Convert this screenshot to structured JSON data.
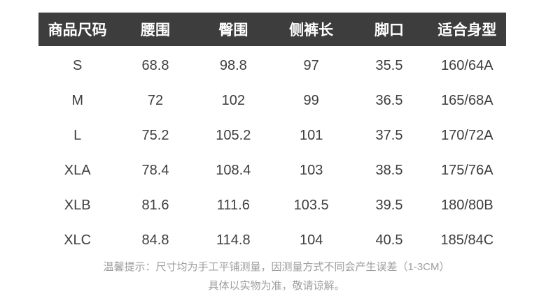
{
  "chart_data": {
    "type": "table",
    "title": "",
    "columns": [
      "商品尺码",
      "腰围",
      "臀围",
      "侧裤长",
      "脚口",
      "适合身型"
    ],
    "rows": [
      [
        "S",
        "68.8",
        "98.8",
        "97",
        "35.5",
        "160/64A"
      ],
      [
        "M",
        "72",
        "102",
        "99",
        "36.5",
        "165/68A"
      ],
      [
        "L",
        "75.2",
        "105.2",
        "101",
        "37.5",
        "170/72A"
      ],
      [
        "XLA",
        "78.4",
        "108.4",
        "103",
        "38.5",
        "175/76A"
      ],
      [
        "XLB",
        "81.6",
        "111.6",
        "103.5",
        "39.5",
        "180/80B"
      ],
      [
        "XLC",
        "84.8",
        "114.8",
        "104",
        "40.5",
        "185/84C"
      ]
    ],
    "layout_hints": {
      "header_style": "dark-bar",
      "grid": "off",
      "alignment": "center"
    }
  },
  "notes": {
    "line1": "温馨提示：尺寸均为手工平铺测量，因测量方式不同会产生误差（1-3CM）",
    "line2": "具体以实物为准，敬请谅解。"
  },
  "colors": {
    "header_bg": "#3d3d3d",
    "header_text": "#ffffff",
    "body_text": "#3e3e3e",
    "note_text": "#9e9e9e",
    "page_bg": "#ffffff"
  }
}
